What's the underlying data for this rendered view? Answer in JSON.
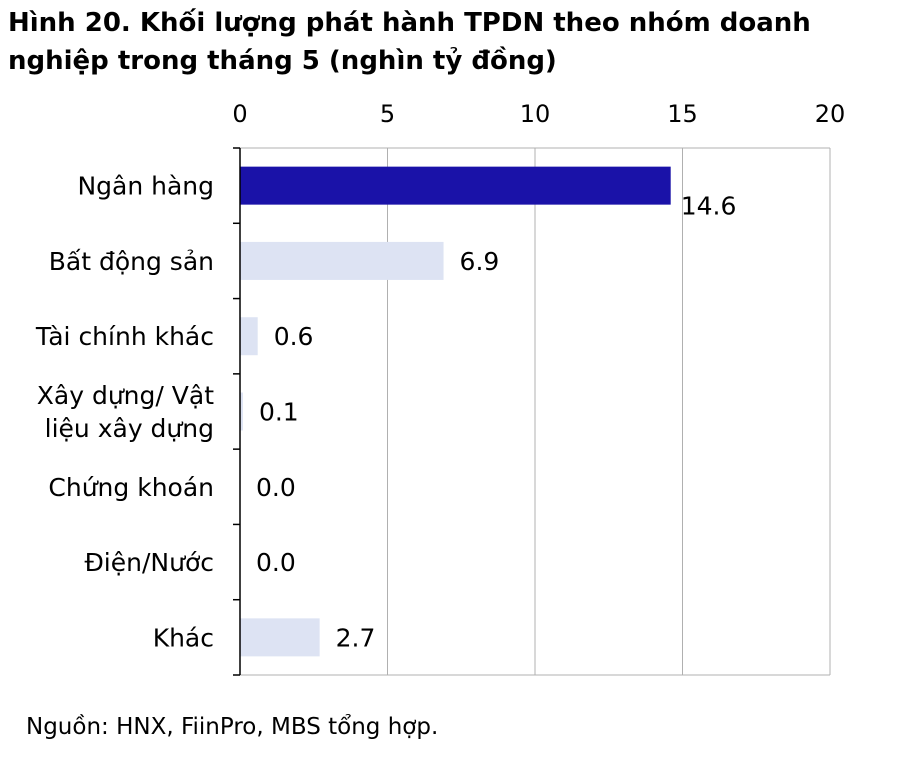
{
  "title_lines": [
    "Hình 20. Khối lượng phát hành TPDN theo nhóm doanh",
    "nghiệp trong tháng 5 (nghìn tỷ đồng)"
  ],
  "source": "Nguồn: HNX, FiinPro, MBS tổng hợp.",
  "chart_data": {
    "type": "bar",
    "orientation": "horizontal",
    "categories": [
      [
        "Ngân hàng"
      ],
      [
        "Bất động sản"
      ],
      [
        "Tài chính khác"
      ],
      [
        "Xây dựng/ Vật",
        "liệu xây dựng"
      ],
      [
        "Chứng khoán"
      ],
      [
        "Điện/Nước"
      ],
      [
        "Khác"
      ]
    ],
    "values": [
      14.6,
      6.9,
      0.6,
      0.1,
      0.0,
      0.0,
      2.7
    ],
    "value_labels": [
      "14.6",
      "6.9",
      "0.6",
      "0.1",
      "0.0",
      "0.0",
      "2.7"
    ],
    "highlight_index": 0,
    "colors": {
      "highlight": "#1a12a8",
      "default": "#dde3f3",
      "grid": "#b0b0b0",
      "axis": "#000000"
    },
    "xlim": [
      0,
      20
    ],
    "xticks": [
      0,
      5,
      10,
      15,
      20
    ],
    "x_axis_position": "top",
    "grid": "vertical",
    "legend": "none"
  }
}
